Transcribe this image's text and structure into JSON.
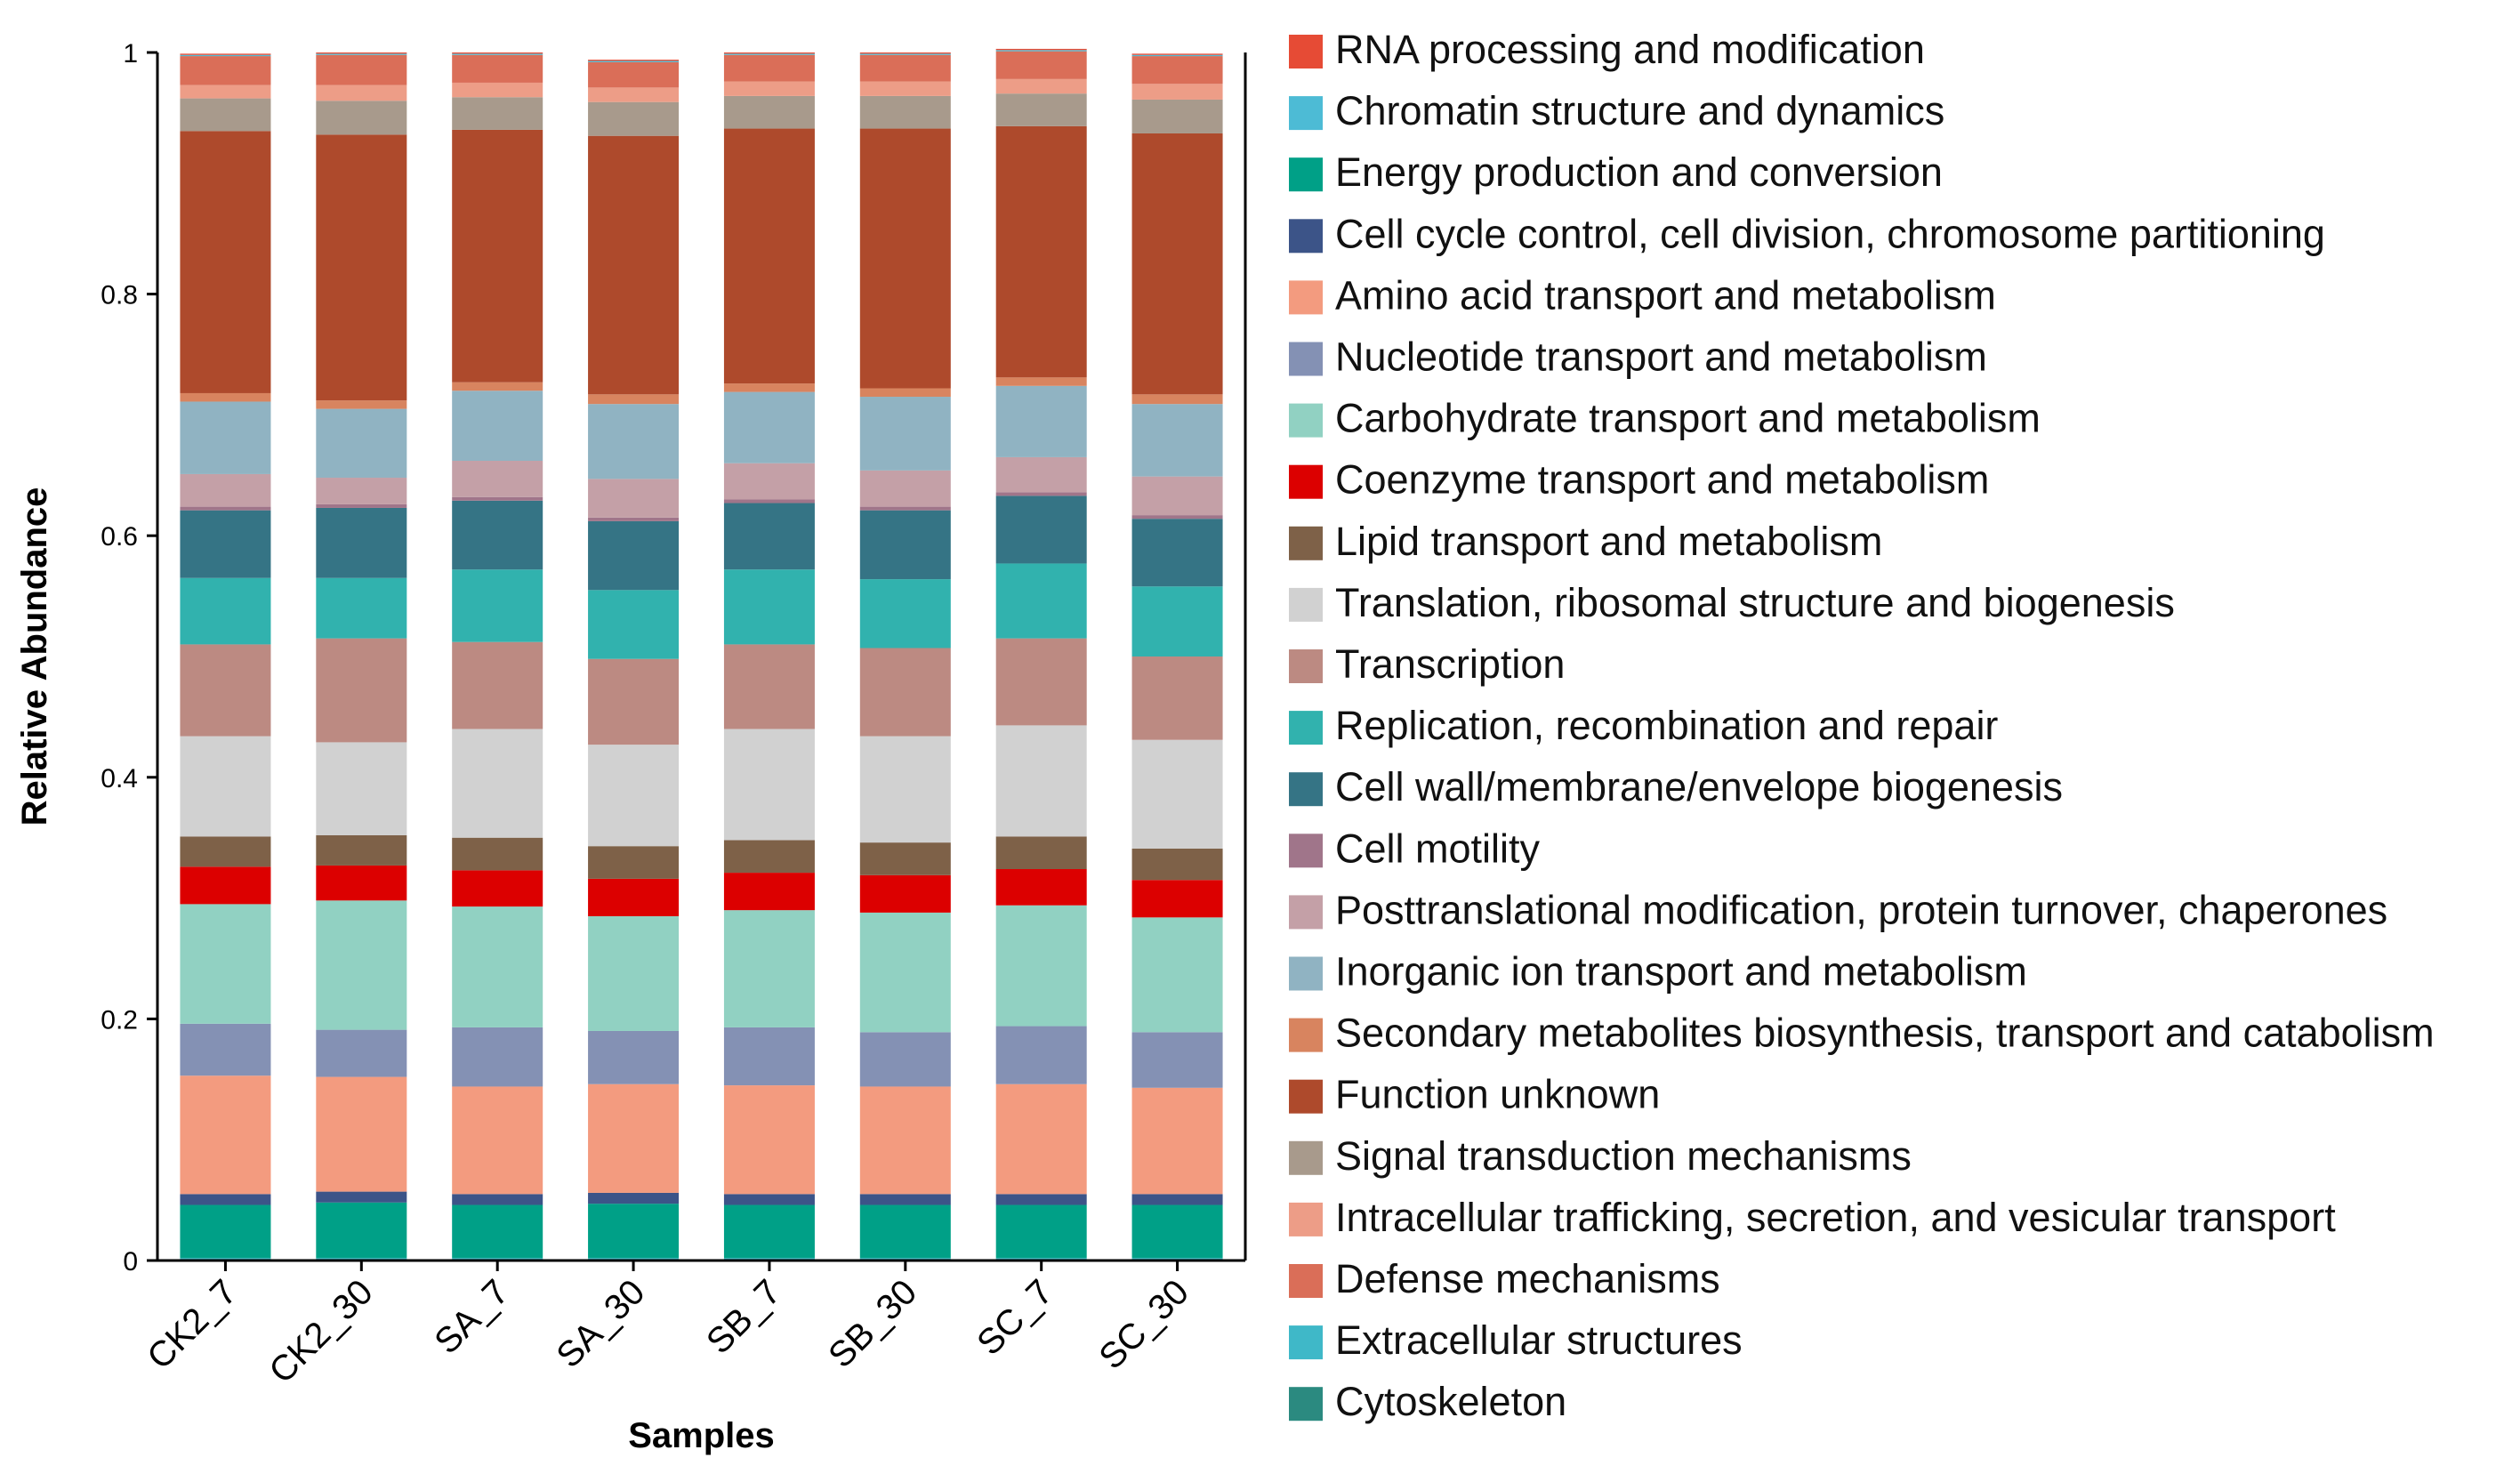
{
  "chart_data": {
    "type": "bar",
    "stacked": true,
    "xlabel": "Samples",
    "ylabel": "Relative Abundance",
    "ylim": [
      0,
      1
    ],
    "yticks": [
      0,
      0.2,
      0.4,
      0.6,
      0.8,
      1
    ],
    "ytick_labels": [
      "0",
      "0.2",
      "0.4",
      "0.6",
      "0.8",
      "1"
    ],
    "categories": [
      "CK2_7",
      "CK2_30",
      "SA_7",
      "SA_30",
      "SB_7",
      "SB_30",
      "SC_7",
      "SC_30"
    ],
    "legend_position": "right",
    "series": [
      {
        "name": "Cytoskeleton",
        "color": "#2b8a80",
        "values": [
          0.001,
          0.001,
          0.001,
          0.001,
          0.001,
          0.001,
          0.001,
          0.001
        ]
      },
      {
        "name": "Extracellular structures",
        "color": "#3fb8c8",
        "values": [
          0.001,
          0.001,
          0.001,
          0.001,
          0.001,
          0.001,
          0.001,
          0.001
        ]
      },
      {
        "name": "Energy production and conversion",
        "color": "#00a087",
        "values": [
          0.044,
          0.046,
          0.044,
          0.045,
          0.044,
          0.044,
          0.044,
          0.044
        ]
      },
      {
        "name": "Cell cycle control, cell division, chromosome partitioning",
        "color": "#3c5488",
        "values": [
          0.009,
          0.009,
          0.009,
          0.009,
          0.009,
          0.009,
          0.009,
          0.009
        ]
      },
      {
        "name": "Amino acid transport and metabolism",
        "color": "#f39b7f",
        "values": [
          0.098,
          0.095,
          0.089,
          0.09,
          0.09,
          0.089,
          0.091,
          0.088
        ]
      },
      {
        "name": "Nucleotide transport and metabolism",
        "color": "#8491b4",
        "values": [
          0.043,
          0.039,
          0.049,
          0.044,
          0.048,
          0.045,
          0.048,
          0.046
        ]
      },
      {
        "name": "Carbohydrate transport and metabolism",
        "color": "#91d1c2",
        "values": [
          0.099,
          0.107,
          0.1,
          0.095,
          0.097,
          0.099,
          0.1,
          0.095
        ]
      },
      {
        "name": "Coenzyme transport and metabolism",
        "color": "#dc0000",
        "values": [
          0.031,
          0.029,
          0.03,
          0.031,
          0.031,
          0.031,
          0.03,
          0.031
        ]
      },
      {
        "name": "Lipid transport and metabolism",
        "color": "#7e6148",
        "values": [
          0.025,
          0.025,
          0.027,
          0.027,
          0.027,
          0.027,
          0.027,
          0.026
        ]
      },
      {
        "name": "Translation, ribosomal structure and biogenesis",
        "color": "#d1d1d1",
        "values": [
          0.083,
          0.077,
          0.09,
          0.084,
          0.092,
          0.088,
          0.092,
          0.09
        ]
      },
      {
        "name": "Transcription",
        "color": "#bc8a82",
        "values": [
          0.076,
          0.086,
          0.072,
          0.071,
          0.07,
          0.073,
          0.072,
          0.069
        ]
      },
      {
        "name": "Replication, recombination and repair",
        "color": "#31b2ae",
        "values": [
          0.055,
          0.05,
          0.06,
          0.057,
          0.062,
          0.057,
          0.062,
          0.058
        ]
      },
      {
        "name": "Cell wall/membrane/envelope biogenesis",
        "color": "#357485",
        "values": [
          0.056,
          0.058,
          0.057,
          0.057,
          0.055,
          0.057,
          0.056,
          0.056
        ]
      },
      {
        "name": "Cell motility",
        "color": "#a0758a",
        "values": [
          0.003,
          0.003,
          0.003,
          0.003,
          0.003,
          0.003,
          0.003,
          0.003
        ]
      },
      {
        "name": "Posttranslational modification, protein turnover, chaperones",
        "color": "#c4a0a7",
        "values": [
          0.027,
          0.022,
          0.03,
          0.032,
          0.03,
          0.03,
          0.029,
          0.032
        ]
      },
      {
        "name": "Inorganic ion transport and metabolism",
        "color": "#90b3c2",
        "values": [
          0.06,
          0.057,
          0.058,
          0.062,
          0.059,
          0.061,
          0.059,
          0.06
        ]
      },
      {
        "name": "Secondary metabolites biosynthesis, transport and catabolism",
        "color": "#d8845f",
        "values": [
          0.007,
          0.007,
          0.007,
          0.008,
          0.007,
          0.007,
          0.007,
          0.008
        ]
      },
      {
        "name": "Function unknown",
        "color": "#ae4a2c",
        "values": [
          0.217,
          0.22,
          0.209,
          0.214,
          0.211,
          0.215,
          0.208,
          0.216
        ]
      },
      {
        "name": "Signal transduction mechanisms",
        "color": "#a89a8c",
        "values": [
          0.027,
          0.028,
          0.027,
          0.028,
          0.027,
          0.027,
          0.027,
          0.028
        ]
      },
      {
        "name": "Intracellular trafficking, secretion, and vesicular transport",
        "color": "#ed9d87",
        "values": [
          0.011,
          0.013,
          0.012,
          0.012,
          0.012,
          0.012,
          0.012,
          0.013
        ]
      },
      {
        "name": "Defense mechanisms",
        "color": "#da6e58",
        "values": [
          0.024,
          0.025,
          0.023,
          0.021,
          0.022,
          0.022,
          0.023,
          0.023
        ]
      },
      {
        "name": "Chromatin structure and dynamics",
        "color": "#4dbbd5",
        "values": [
          0.001,
          0.001,
          0.001,
          0.001,
          0.001,
          0.001,
          0.001,
          0.001
        ]
      },
      {
        "name": "RNA processing and modification",
        "color": "#e64b35",
        "values": [
          0.001,
          0.001,
          0.001,
          0.001,
          0.001,
          0.001,
          0.001,
          0.001
        ]
      }
    ],
    "legend": [
      {
        "name": "RNA processing and modification",
        "color": "#e64b35"
      },
      {
        "name": "Chromatin structure and dynamics",
        "color": "#4dbbd5"
      },
      {
        "name": "Energy production and conversion",
        "color": "#00a087"
      },
      {
        "name": "Cell cycle control, cell division, chromosome partitioning",
        "color": "#3c5488"
      },
      {
        "name": "Amino acid transport and metabolism",
        "color": "#f39b7f"
      },
      {
        "name": "Nucleotide transport and metabolism",
        "color": "#8491b4"
      },
      {
        "name": "Carbohydrate transport and metabolism",
        "color": "#91d1c2"
      },
      {
        "name": "Coenzyme transport and metabolism",
        "color": "#dc0000"
      },
      {
        "name": "Lipid transport and metabolism",
        "color": "#7e6148"
      },
      {
        "name": "Translation, ribosomal structure and biogenesis",
        "color": "#d1d1d1"
      },
      {
        "name": "Transcription",
        "color": "#bc8a82"
      },
      {
        "name": "Replication, recombination and repair",
        "color": "#31b2ae"
      },
      {
        "name": "Cell wall/membrane/envelope biogenesis",
        "color": "#357485"
      },
      {
        "name": "Cell motility",
        "color": "#a0758a"
      },
      {
        "name": "Posttranslational modification, protein turnover, chaperones",
        "color": "#c4a0a7"
      },
      {
        "name": "Inorganic ion transport and metabolism",
        "color": "#90b3c2"
      },
      {
        "name": "Secondary metabolites biosynthesis, transport and catabolism",
        "color": "#d8845f"
      },
      {
        "name": "Function unknown",
        "color": "#ae4a2c"
      },
      {
        "name": "Signal transduction mechanisms",
        "color": "#a89a8c"
      },
      {
        "name": "Intracellular trafficking, secretion, and vesicular transport",
        "color": "#ed9d87"
      },
      {
        "name": "Defense mechanisms",
        "color": "#da6e58"
      },
      {
        "name": "Extracellular structures",
        "color": "#3fb8c8"
      },
      {
        "name": "Cytoskeleton",
        "color": "#2b8a80"
      }
    ]
  }
}
